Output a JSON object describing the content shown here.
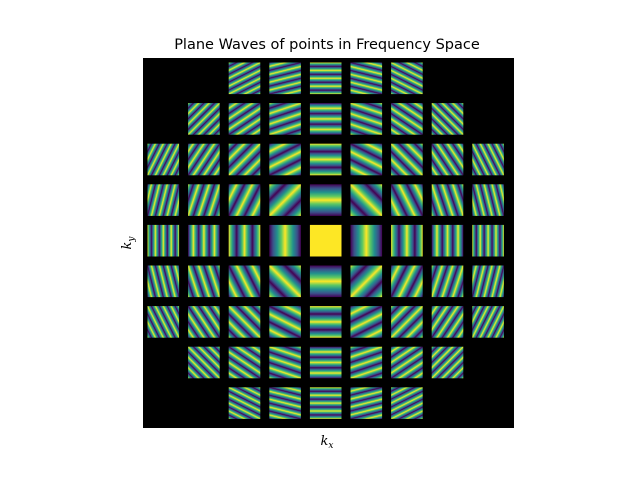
{
  "chart_data": {
    "type": "heatmap",
    "title": "Plane Waves of points in Frequency Space",
    "xlabel": {
      "base": "k",
      "sub": "x"
    },
    "ylabel": {
      "base": "k",
      "sub": "y"
    },
    "grid": false,
    "background_color": "#000000",
    "colormap": "viridis",
    "colormap_stops": [
      "#440154",
      "#3b528b",
      "#21918c",
      "#5ec962",
      "#fde725"
    ],
    "kx": [
      -4,
      -3,
      -2,
      -1,
      0,
      1,
      2,
      3,
      4
    ],
    "ky": [
      4,
      3,
      2,
      1,
      0,
      -1,
      -2,
      -3,
      -4
    ],
    "visible_cells": [
      [
        0,
        0,
        1,
        1,
        1,
        1,
        1,
        0,
        0
      ],
      [
        0,
        1,
        1,
        1,
        1,
        1,
        1,
        1,
        0
      ],
      [
        1,
        1,
        1,
        1,
        1,
        1,
        1,
        1,
        1
      ],
      [
        1,
        1,
        1,
        1,
        1,
        1,
        1,
        1,
        1
      ],
      [
        1,
        1,
        1,
        1,
        1,
        1,
        1,
        1,
        1
      ],
      [
        1,
        1,
        1,
        1,
        1,
        1,
        1,
        1,
        1
      ],
      [
        1,
        1,
        1,
        1,
        1,
        1,
        1,
        1,
        1
      ],
      [
        0,
        1,
        1,
        1,
        1,
        1,
        1,
        1,
        0
      ],
      [
        0,
        0,
        1,
        1,
        1,
        1,
        1,
        0,
        0
      ]
    ]
  }
}
